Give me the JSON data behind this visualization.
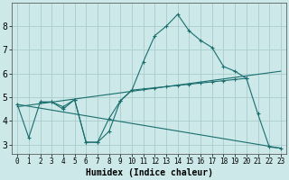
{
  "xlabel": "Humidex (Indice chaleur)",
  "background_color": "#cce8e8",
  "grid_color": "#aacccc",
  "line_color": "#1a6e6e",
  "x_start": 0,
  "x_end": 23,
  "y_min": 2.6,
  "y_max": 9.0,
  "yticks": [
    3,
    4,
    5,
    6,
    7,
    8
  ],
  "xticks": [
    0,
    1,
    2,
    3,
    4,
    5,
    6,
    7,
    8,
    9,
    10,
    11,
    12,
    13,
    14,
    15,
    16,
    17,
    18,
    19,
    20,
    21,
    22,
    23
  ],
  "series_main": {
    "x": [
      0,
      1,
      2,
      3,
      4,
      5,
      6,
      7,
      8,
      9,
      10,
      11,
      12,
      13,
      14,
      15,
      16,
      17,
      18,
      19,
      20,
      21,
      22,
      23
    ],
    "y": [
      4.7,
      3.3,
      4.8,
      4.8,
      4.5,
      4.9,
      3.1,
      3.1,
      3.55,
      4.85,
      5.3,
      6.5,
      7.6,
      8.0,
      8.5,
      7.8,
      7.4,
      7.1,
      6.3,
      6.1,
      5.8,
      4.3,
      2.9,
      2.85
    ]
  },
  "series_smooth": {
    "x": [
      2,
      3,
      4,
      5,
      6,
      7,
      8,
      9,
      10,
      11,
      12,
      13,
      14,
      15,
      16,
      17,
      18,
      19,
      20
    ],
    "y": [
      4.8,
      4.8,
      4.6,
      4.9,
      3.1,
      3.1,
      4.1,
      4.85,
      5.3,
      5.35,
      5.4,
      5.45,
      5.5,
      5.55,
      5.6,
      5.65,
      5.7,
      5.75,
      5.8
    ]
  },
  "line_up": {
    "x": [
      0,
      23
    ],
    "y": [
      4.6,
      6.1
    ]
  },
  "line_down": {
    "x": [
      0,
      23
    ],
    "y": [
      4.7,
      2.85
    ]
  },
  "fontsize_xlabel": 7,
  "fontsize_ytick": 7,
  "fontsize_xtick": 5.5
}
